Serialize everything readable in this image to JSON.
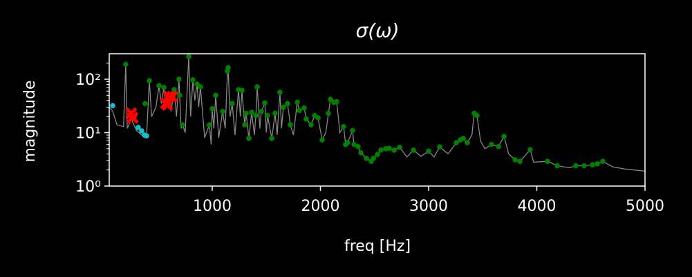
{
  "chart_data": {
    "type": "line",
    "title": "σ(ω)",
    "xlabel": "freq [Hz]",
    "ylabel": "magnitude",
    "xlim": [
      48,
      5000
    ],
    "ylim": [
      1,
      300
    ],
    "ylog": true,
    "xticks": [
      1000,
      2000,
      3000,
      4000,
      5000
    ],
    "yticks": [
      {
        "value": 1,
        "label": "10⁰"
      },
      {
        "value": 10,
        "label": "10¹"
      },
      {
        "value": 100,
        "label": "10²"
      }
    ],
    "background": "#000000",
    "series": [
      {
        "marker": "line",
        "color": "#888888",
        "x": [
          50,
          80,
          120,
          180,
          201,
          215,
          252,
          300,
          348,
          393,
          419,
          440,
          480,
          508,
          530,
          553,
          575,
          598,
          620,
          648,
          670,
          693,
          712,
          725,
          750,
          783,
          800,
          821,
          840,
          860,
          875,
          891,
          930,
          974,
          990,
          1000,
          1015,
          1032,
          1060,
          1096,
          1120,
          1141,
          1147,
          1165,
          1185,
          1210,
          1243,
          1260,
          1275,
          1300,
          1313,
          1339,
          1364,
          1390,
          1403,
          1416,
          1440,
          1454,
          1486,
          1500,
          1511,
          1550,
          1581,
          1600,
          1626,
          1640,
          1658,
          1696,
          1722,
          1750,
          1786,
          1805,
          1850,
          1869,
          1914,
          1946,
          1978,
          2016,
          2050,
          2074,
          2093,
          2124,
          2150,
          2180,
          2214,
          2233,
          2252,
          2297,
          2310,
          2348,
          2374,
          2425,
          2470,
          2489,
          2527,
          2559,
          2604,
          2636,
          2681,
          2732,
          2800,
          2860,
          2930,
          3000,
          3050,
          3102,
          3180,
          3256,
          3294,
          3320,
          3358,
          3400,
          3422,
          3447,
          3480,
          3520,
          3582,
          3646,
          3697,
          3740,
          3799,
          3844,
          3939,
          3970,
          4099,
          4189,
          4300,
          4361,
          4438,
          4515,
          4559,
          4610,
          4700,
          4800,
          4900,
          5000
        ],
        "values": [
          30,
          25,
          14,
          13,
          190,
          12,
          18,
          11,
          9,
          8.5,
          94,
          20,
          30,
          76,
          35,
          70,
          30,
          33,
          25,
          64,
          20,
          100,
          12,
          14,
          10,
          265,
          20,
          97,
          40,
          81,
          30,
          72,
          8,
          14,
          6,
          28,
          12,
          50,
          8,
          25,
          12,
          142,
          165,
          20,
          35,
          9,
          64,
          20,
          62,
          14,
          23,
          7.8,
          24,
          9,
          21,
          72,
          12,
          25,
          36,
          10,
          21,
          7.8,
          23,
          9,
          57,
          12,
          30,
          35,
          14,
          9,
          37,
          26,
          29,
          18,
          14,
          21,
          19,
          7.3,
          10,
          23,
          42,
          37,
          38,
          10,
          13,
          6,
          6.5,
          11,
          6,
          5.5,
          4.2,
          3.3,
          2.9,
          3.3,
          3.9,
          4.7,
          5,
          5.1,
          4.7,
          5.3,
          3.5,
          4.7,
          3.6,
          4.5,
          3.5,
          5.4,
          4,
          6.5,
          7.3,
          7.8,
          6.5,
          9,
          23,
          21,
          7,
          5,
          6,
          5.5,
          8.5,
          4,
          3.1,
          2.9,
          4.8,
          2.8,
          2.9,
          2.4,
          2.2,
          2.4,
          2.4,
          2.5,
          2.6,
          2.9,
          2.3,
          2.1,
          2,
          1.9
        ]
      },
      {
        "marker": "o",
        "color": "#008000",
        "x": [
          201,
          380,
          419,
          508,
          553,
          598,
          648,
          693,
          700,
          725,
          783,
          821,
          860,
          891,
          974,
          1000,
          1032,
          1096,
          1141,
          1147,
          1185,
          1243,
          1275,
          1300,
          1313,
          1339,
          1364,
          1403,
          1416,
          1454,
          1486,
          1511,
          1550,
          1581,
          1626,
          1658,
          1696,
          1722,
          1786,
          1805,
          1850,
          1869,
          1914,
          1946,
          1978,
          2016,
          2074,
          2093,
          2124,
          2150,
          2214,
          2233,
          2252,
          2297,
          2310,
          2348,
          2374,
          2425,
          2470,
          2489,
          2527,
          2559,
          2604,
          2636,
          2681,
          2732,
          2860,
          3000,
          3102,
          3256,
          3294,
          3320,
          3358,
          3422,
          3447,
          3582,
          3646,
          3697,
          3799,
          3844,
          3939,
          4099,
          4189,
          4361,
          4438,
          4515,
          4559,
          4610
        ],
        "values": [
          190,
          35,
          94,
          76,
          70,
          33,
          64,
          100,
          50,
          14,
          265,
          97,
          81,
          72,
          14,
          28,
          50,
          25,
          142,
          165,
          35,
          64,
          62,
          14,
          23,
          7.8,
          24,
          21,
          72,
          25,
          36,
          21,
          7.8,
          23,
          57,
          30,
          35,
          14,
          37,
          26,
          29,
          18,
          14,
          21,
          19,
          7.3,
          23,
          42,
          37,
          38,
          13,
          6,
          6.5,
          11,
          6,
          5.5,
          4.2,
          3.3,
          2.9,
          3.3,
          3.9,
          4.7,
          5,
          5.1,
          4.7,
          5.3,
          4.7,
          4.5,
          5.4,
          6.5,
          7.3,
          7.8,
          6.5,
          23,
          21,
          6,
          5.5,
          8.5,
          3.1,
          2.9,
          4.8,
          2.9,
          2.4,
          2.4,
          2.4,
          2.5,
          2.6,
          2.9
        ]
      },
      {
        "marker": "o",
        "color": "#17becf",
        "x": [
          80,
          316,
          348,
          374,
          393
        ],
        "values": [
          32,
          12.5,
          10.8,
          9,
          8.7
        ]
      },
      {
        "marker": "x",
        "color": "#ff0000",
        "x": [
          252,
          265,
          572,
          585,
          598,
          630
        ],
        "values": [
          23,
          19,
          35,
          33,
          47,
          47
        ]
      }
    ]
  }
}
